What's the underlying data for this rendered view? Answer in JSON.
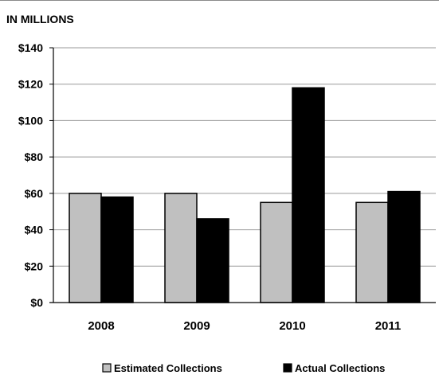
{
  "chart_data": {
    "type": "bar",
    "unit_label": "IN MILLIONS",
    "categories": [
      "2008",
      "2009",
      "2010",
      "2011"
    ],
    "series": [
      {
        "name": "Estimated Collections",
        "values": [
          60,
          60,
          55,
          55
        ],
        "color": "#c0c0c0"
      },
      {
        "name": "Actual Collections",
        "values": [
          58,
          46,
          118,
          61
        ],
        "color": "#000000"
      }
    ],
    "ylim": [
      0,
      140
    ],
    "yticks": [
      0,
      20,
      40,
      60,
      80,
      100,
      120,
      140
    ],
    "ytick_labels": [
      "$0",
      "$20",
      "$40",
      "$60",
      "$80",
      "$100",
      "$120",
      "$140"
    ],
    "grid": true,
    "legend": "bottom"
  }
}
